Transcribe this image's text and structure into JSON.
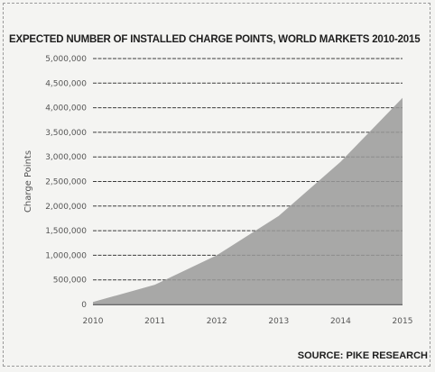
{
  "chart_data": {
    "type": "area",
    "title": "EXPECTED NUMBER OF INSTALLED CHARGE POINTS, WORLD MARKETS 2010-2015",
    "xlabel": "",
    "ylabel": "Charge Points",
    "source": "SOURCE: PIKE RESEARCH",
    "x": [
      "2010",
      "2011",
      "2012",
      "2013",
      "2014",
      "2015"
    ],
    "y_ticks": [
      "0",
      "500,000",
      "1,000,000",
      "1,500,000",
      "2,000,000",
      "2,500,000",
      "3,000,000",
      "3,500,000",
      "4,000,000",
      "4,500,000",
      "5,000,000"
    ],
    "ylim": [
      0,
      5000000
    ],
    "grid": true,
    "series": [
      {
        "values": [
          50000,
          400000,
          1000000,
          1800000,
          2900000,
          4200000
        ]
      }
    ],
    "colors": {
      "area": "#9a9a9a",
      "grid": "#3c3c3c",
      "background": "#f4f4f2"
    }
  }
}
